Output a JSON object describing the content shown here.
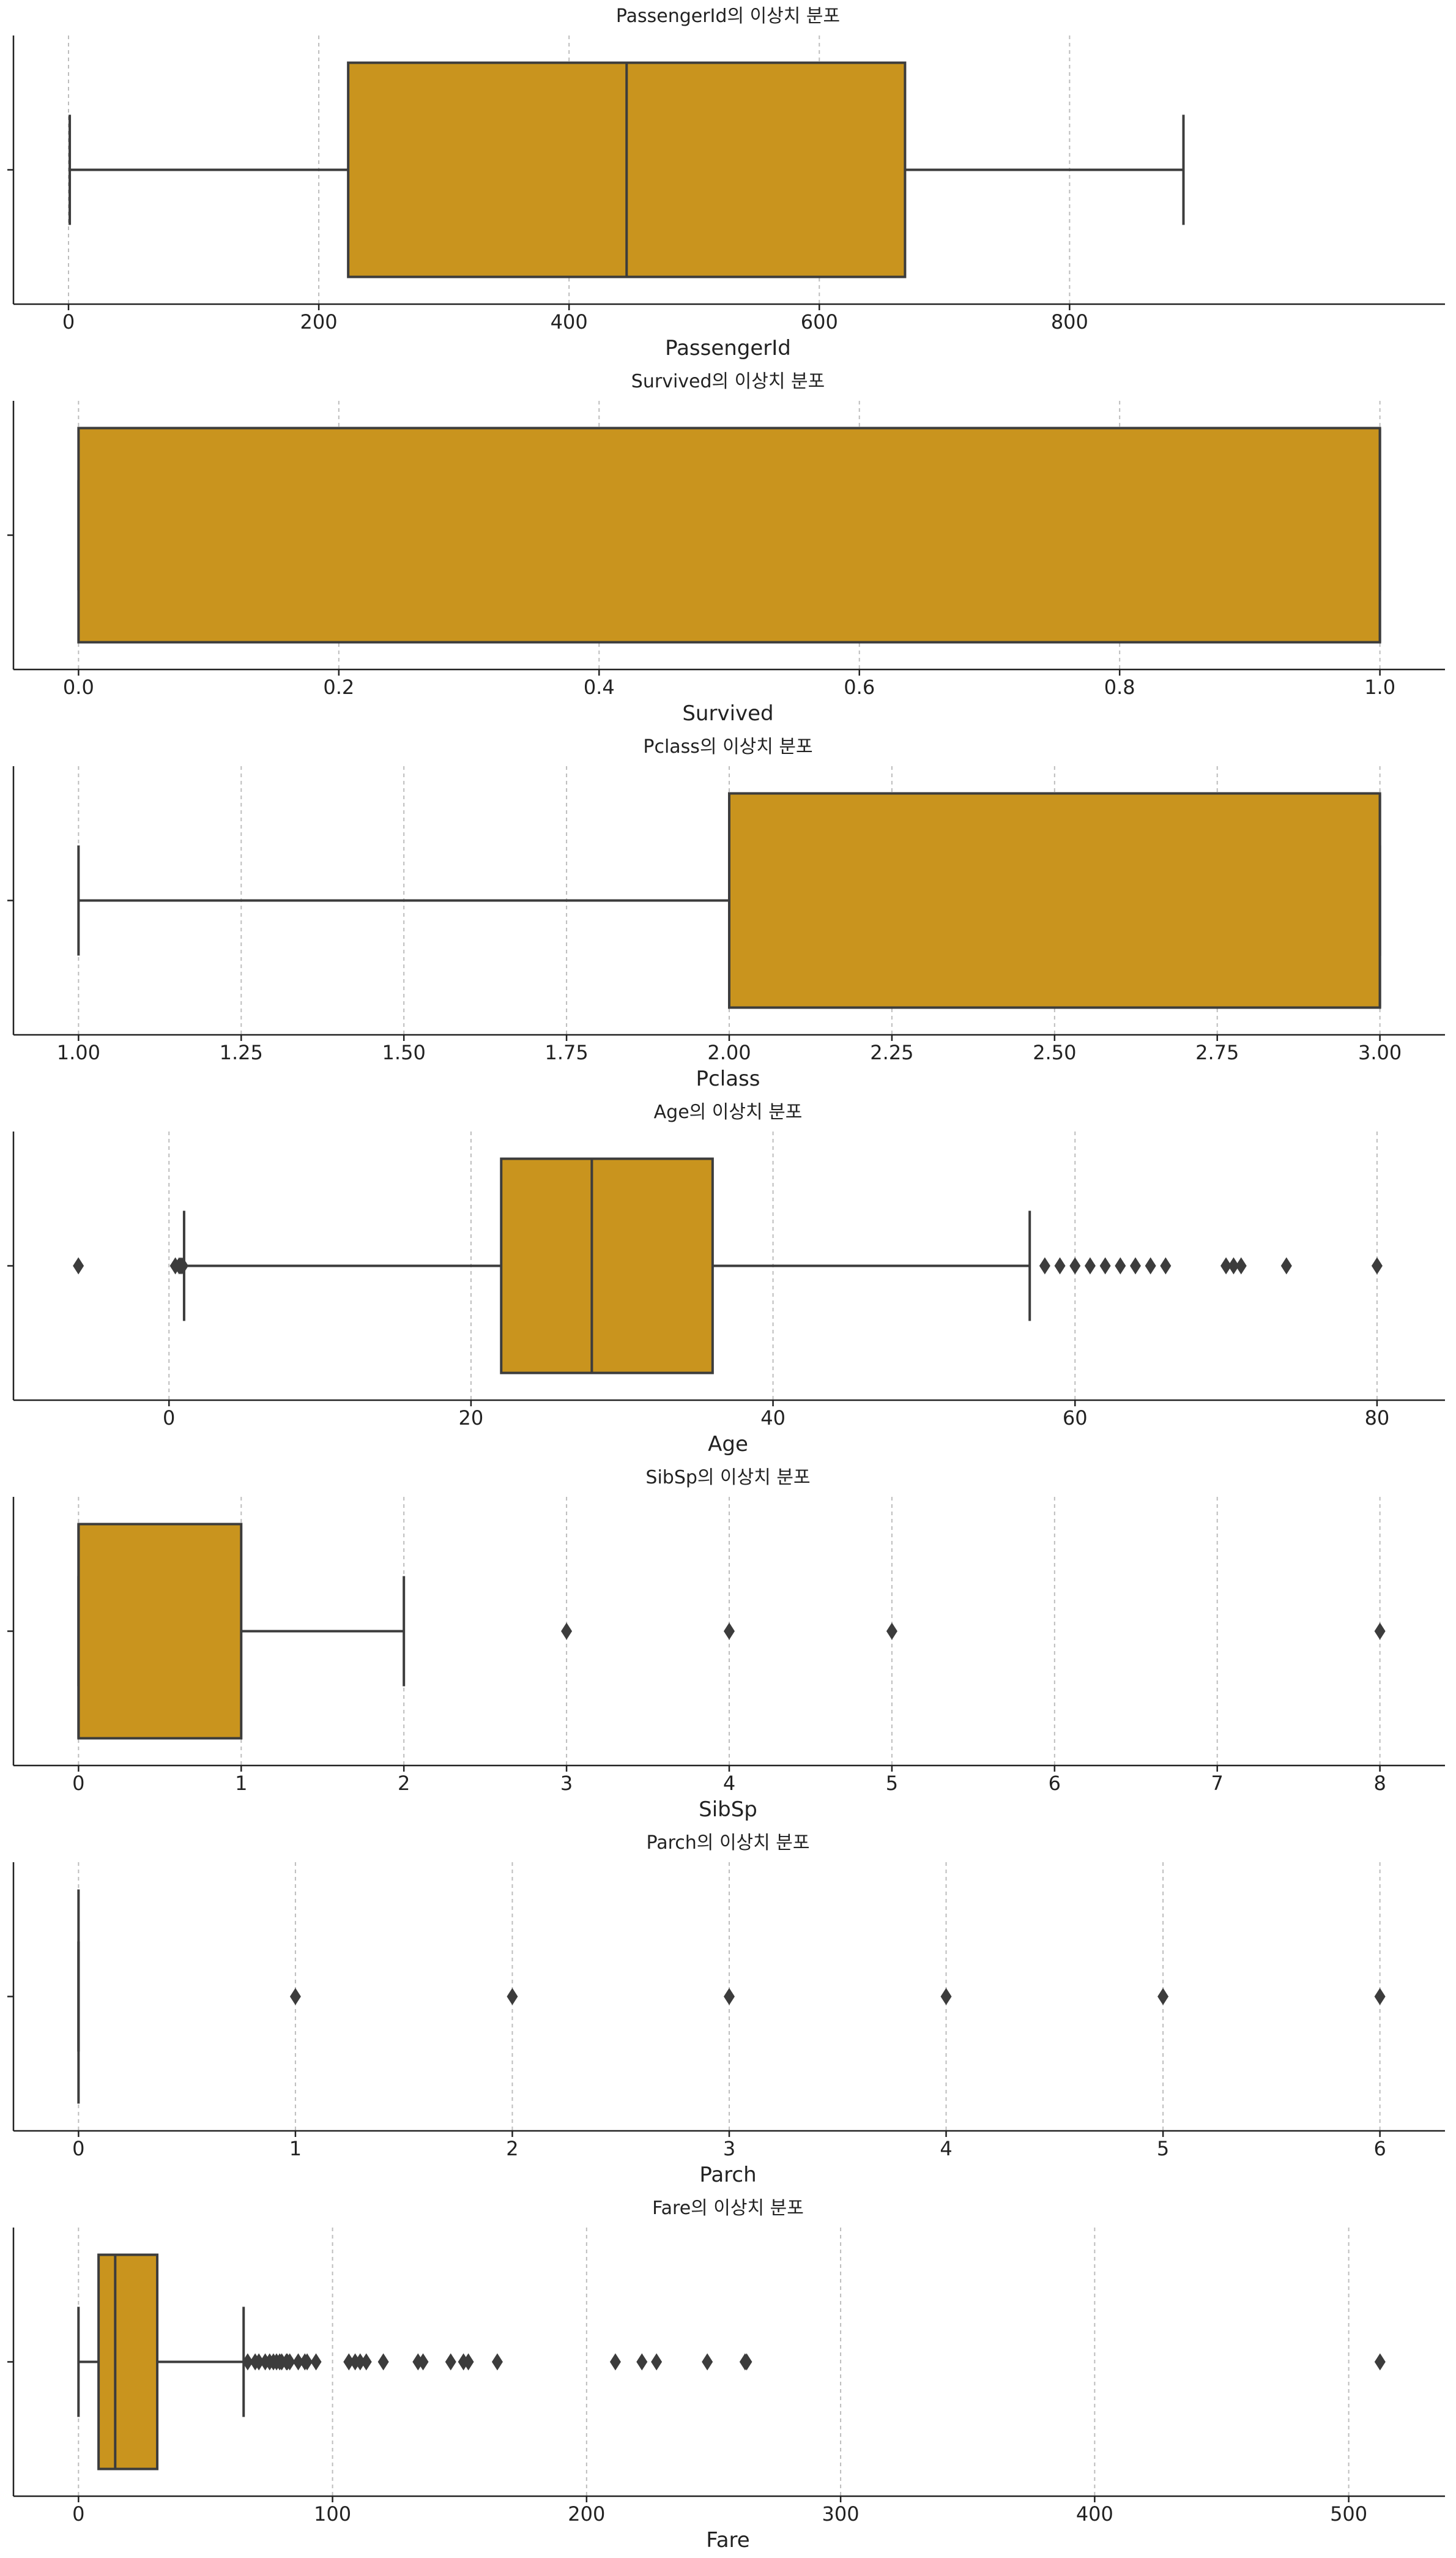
{
  "chart_data": [
    {
      "type": "box",
      "title": "PassengerId의 이상치 분포",
      "xlabel": "PassengerId",
      "xlim": [
        -44,
        1100
      ],
      "ticks": [
        0,
        200,
        400,
        600,
        800
      ],
      "tick_labels": [
        "0",
        "200",
        "400",
        "600",
        "800"
      ],
      "stats": {
        "q1": 223.5,
        "median": 446,
        "q3": 668.5,
        "whisker_low": 1,
        "whisker_high": 891
      },
      "fliers": []
    },
    {
      "type": "box",
      "title": "Survived의 이상치 분포",
      "xlabel": "Survived",
      "xlim": [
        -0.05,
        1.05
      ],
      "ticks": [
        0.0,
        0.2,
        0.4,
        0.6,
        0.8,
        1.0
      ],
      "tick_labels": [
        "0.0",
        "0.2",
        "0.4",
        "0.6",
        "0.8",
        "1.0"
      ],
      "stats": {
        "q1": 0,
        "median": 1,
        "q3": 1,
        "whisker_low": 0,
        "whisker_high": 1
      },
      "fliers": []
    },
    {
      "type": "box",
      "title": "Pclass의 이상치 분포",
      "xlabel": "Pclass",
      "xlim": [
        0.9,
        3.1
      ],
      "ticks": [
        1.0,
        1.25,
        1.5,
        1.75,
        2.0,
        2.25,
        2.5,
        2.75,
        3.0
      ],
      "tick_labels": [
        "1.00",
        "1.25",
        "1.50",
        "1.75",
        "2.00",
        "2.25",
        "2.50",
        "2.75",
        "3.00"
      ],
      "stats": {
        "q1": 2,
        "median": 3,
        "q3": 3,
        "whisker_low": 1,
        "whisker_high": 3
      },
      "fliers": []
    },
    {
      "type": "box",
      "title": "Age의 이상치 분포",
      "xlabel": "Age",
      "xlim": [
        -10.3,
        84.5
      ],
      "ticks": [
        0,
        20,
        40,
        60,
        80
      ],
      "tick_labels": [
        "0",
        "20",
        "40",
        "60",
        "80"
      ],
      "stats": {
        "q1": 22,
        "median": 28,
        "q3": 36,
        "whisker_low": 1,
        "whisker_high": 57
      },
      "fliers": [
        -6,
        0.42,
        0.67,
        0.75,
        0.83,
        0.92,
        58,
        59,
        60,
        61,
        62,
        63,
        64,
        65,
        66,
        70,
        70.5,
        71,
        74,
        80
      ]
    },
    {
      "type": "box",
      "title": "SibSp의 이상치 분포",
      "xlabel": "SibSp",
      "xlim": [
        -0.4,
        8.4
      ],
      "ticks": [
        0,
        1,
        2,
        3,
        4,
        5,
        6,
        7,
        8
      ],
      "tick_labels": [
        "0",
        "1",
        "2",
        "3",
        "4",
        "5",
        "6",
        "7",
        "8"
      ],
      "stats": {
        "q1": 0,
        "median": 0,
        "q3": 1,
        "whisker_low": 0,
        "whisker_high": 2
      },
      "fliers": [
        3,
        4,
        5,
        8
      ]
    },
    {
      "type": "box",
      "title": "Parch의 이상치 분포",
      "xlabel": "Parch",
      "xlim": [
        -0.3,
        6.3
      ],
      "ticks": [
        0,
        1,
        2,
        3,
        4,
        5,
        6
      ],
      "tick_labels": [
        "0",
        "1",
        "2",
        "3",
        "4",
        "5",
        "6"
      ],
      "stats": {
        "q1": 0,
        "median": 0,
        "q3": 0,
        "whisker_low": 0,
        "whisker_high": 0
      },
      "fliers": [
        1,
        2,
        3,
        4,
        5,
        6
      ]
    },
    {
      "type": "box",
      "title": "Fare의 이상치 분포",
      "xlabel": "Fare",
      "xlim": [
        -25.6,
        537.9
      ],
      "ticks": [
        0,
        100,
        200,
        300,
        400,
        500
      ],
      "tick_labels": [
        "0",
        "100",
        "200",
        "300",
        "400",
        "500"
      ],
      "stats": {
        "q1": 7.9,
        "median": 14.45,
        "q3": 31,
        "whisker_low": 0,
        "whisker_high": 65
      },
      "fliers": [
        66.6,
        69.55,
        71,
        73.5,
        75.25,
        76.73,
        77.96,
        79.2,
        80,
        81.86,
        82.17,
        83.16,
        86.5,
        89.1,
        90,
        93.5,
        106.43,
        108.9,
        110.88,
        113.28,
        120,
        133.65,
        135.63,
        146.52,
        151.55,
        153.46,
        164.87,
        211.34,
        221.78,
        227.53,
        247.52,
        262.38,
        263,
        512.33
      ]
    }
  ]
}
